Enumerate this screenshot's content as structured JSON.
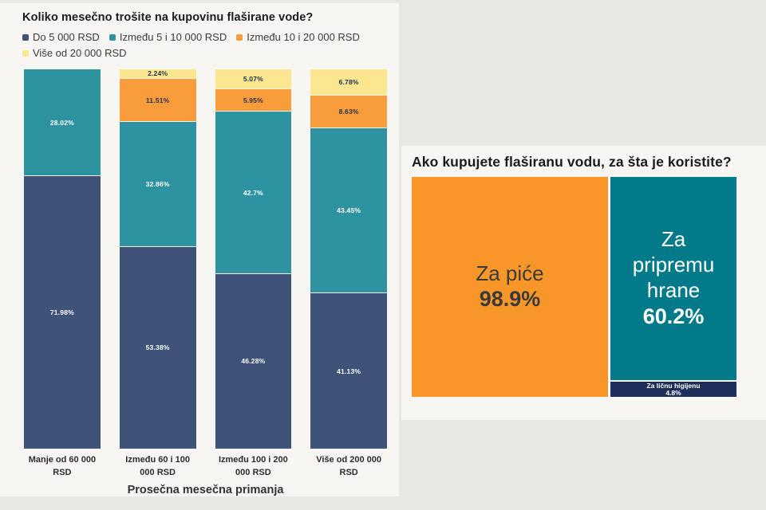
{
  "page": {
    "background": "#e8e7e4",
    "card_background": "#f7f6f3"
  },
  "left_panel": {
    "title": "Koliko mesečno trošite na kupovinu flaširane vode?",
    "x_axis_title": "Prosečna mesečna primanja"
  },
  "right_panel": {
    "title": "Ako kupujete flaširanu vodu, za šta je koristite?"
  },
  "chart_data": [
    {
      "type": "bar",
      "stacked": true,
      "orientation": "vertical",
      "title": "Koliko mesečno trošite na kupovinu flaširane vode?",
      "xlabel": "Prosečna mesečna primanja",
      "ylabel": "",
      "unit": "%",
      "ylim": [
        0,
        100
      ],
      "grid": false,
      "legend_position": "top",
      "categories": [
        "Manje od 60 000 RSD",
        "Između 60 i 100 000 RSD",
        "Između 100 i 200 000 RSD",
        "Više od 200 000 RSD"
      ],
      "series": [
        {
          "name": "Do 5 000 RSD",
          "color": "#3e5377",
          "label_color": "#ffffff",
          "values": [
            71.98,
            53.38,
            46.28,
            41.13
          ],
          "labels": [
            "71.98%",
            "53.38%",
            "46.28%",
            "41.13%"
          ]
        },
        {
          "name": "Između 5 i 10 000 RSD",
          "color": "#2e93a0",
          "label_color": "#ffffff",
          "values": [
            28.02,
            32.86,
            42.7,
            43.45
          ],
          "labels": [
            "28.02%",
            "32.86%",
            "42.7%",
            "43.45%"
          ]
        },
        {
          "name": "Između 10 i 20 000 RSD",
          "color": "#f99d3c",
          "label_color": "#1f2e52",
          "values": [
            0,
            11.51,
            5.95,
            8.63
          ],
          "labels": [
            null,
            "11.51%",
            "5.95%",
            "8.63%"
          ]
        },
        {
          "name": "Više od 20 000 RSD",
          "color": "#fbe78e",
          "label_color": "#1f2e52",
          "values": [
            0,
            2.24,
            5.07,
            6.78
          ],
          "labels": [
            null,
            "2.24%",
            "5.07%",
            "6.78%"
          ]
        }
      ]
    },
    {
      "type": "treemap",
      "title": "Ako kupujete flaširanu vodu, za šta je koristite?",
      "unit": "%",
      "items": [
        {
          "name": "Za piće",
          "value": 98.9,
          "label": "98.9%",
          "color": "#f89729",
          "text_color": "#3a3a3a"
        },
        {
          "name": "Za pripremu hrane",
          "value": 60.2,
          "label": "60.2%",
          "color": "#037a8a",
          "text_color": "#ffffff"
        },
        {
          "name": "Za ličnu higijenu",
          "value": 4.8,
          "label": "4.8%",
          "color": "#1f2e5a",
          "text_color": "#ffffff"
        }
      ]
    }
  ]
}
